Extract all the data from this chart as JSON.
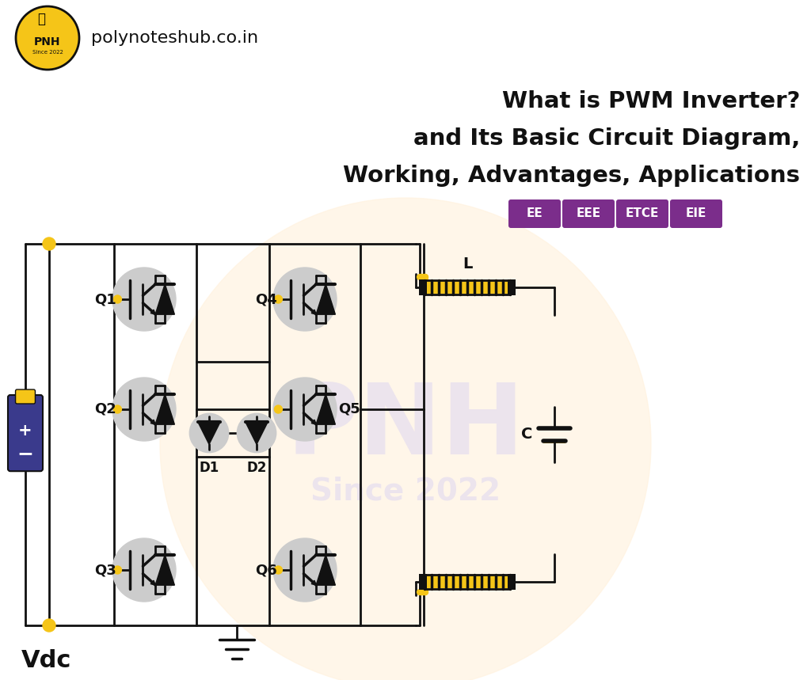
{
  "bg_color": "#ffffff",
  "bg_warm": "#fff8ec",
  "title_lines": [
    "What is PWM Inverter?",
    "and Its Basic Circuit Diagram,",
    "Working, Advantages, Applications"
  ],
  "title_color": "#111111",
  "title_fontsize": 21,
  "logo_text": "polynoteshub.co.in",
  "logo_circle_color": "#f5c518",
  "badge_labels": [
    "EE",
    "EEE",
    "ETCE",
    "EIE"
  ],
  "badge_color": "#7b2d8b",
  "badge_text_color": "#ffffff",
  "vdc_label": "Vdc",
  "inductor_label": "L",
  "capacitor_label": "C",
  "wire_color": "#111111",
  "dot_color": "#f5c518",
  "transistor_bg": "#cccccc",
  "inductor_color": "#f5c518",
  "battery_body_color": "#3a3a8c",
  "battery_top_color": "#f5c518",
  "watermark_color": "#e0d8f0"
}
